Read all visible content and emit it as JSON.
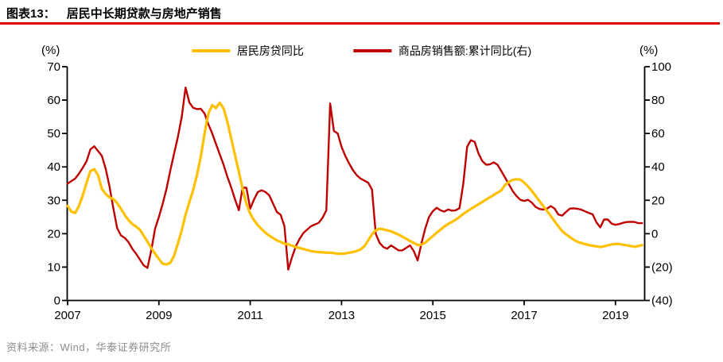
{
  "header": {
    "label": "图表13：",
    "title": "居民中长期贷款与房地产销售"
  },
  "source": "资料来源：Wind，华泰证券研究所",
  "colors": {
    "title_underline": "#e00000",
    "mortgage_line": "#FFC000",
    "sales_line": "#C00000",
    "axis": "#000000",
    "source_text": "#8c8c8c"
  },
  "legend": [
    {
      "label": "居民房贷同比",
      "color": "#FFC000"
    },
    {
      "label": "商品房销售额:累计同比(右)",
      "color": "#C00000"
    }
  ],
  "chart_data": {
    "type": "line",
    "title": "居民中长期贷款与房地产销售",
    "x_start": "2007-01",
    "x_interval": "monthly",
    "grid": false,
    "legend_position": "top-center",
    "x_tick_years": [
      2007,
      2009,
      2011,
      2013,
      2015,
      2017,
      2019
    ],
    "x_tick_labels": [
      "2007",
      "2009",
      "2011",
      "2013",
      "2015",
      "2017",
      "2019"
    ],
    "left_axis": {
      "unit": "(%)",
      "min": 0,
      "max": 70,
      "tick_values": [
        0,
        10,
        20,
        30,
        40,
        50,
        60,
        70
      ],
      "tick_labels": [
        "0",
        "10",
        "20",
        "30",
        "40",
        "50",
        "60",
        "70"
      ]
    },
    "right_axis": {
      "unit": "(%)",
      "min": -40,
      "max": 100,
      "tick_values": [
        -40,
        -20,
        0,
        20,
        40,
        60,
        80,
        100
      ],
      "tick_labels": [
        "(40)",
        "(20)",
        "0",
        "20",
        "40",
        "60",
        "80",
        "100"
      ]
    },
    "series": [
      {
        "name": "商品房销售额:累计同比(右)",
        "axis": "right",
        "color": "#C00000",
        "values": [
          30.0,
          31.5,
          33.0,
          36.0,
          39.5,
          43.5,
          50.5,
          52.3,
          49.5,
          46.5,
          39.0,
          28.5,
          15.5,
          3.5,
          -1.0,
          -2.5,
          -5.0,
          -9.0,
          -12.0,
          -15.5,
          -19.0,
          -20.5,
          -10.0,
          3.0,
          10.0,
          18.0,
          27.0,
          38.0,
          48.0,
          58.0,
          70.0,
          87.5,
          78.5,
          75.4,
          74.6,
          74.8,
          72.0,
          65.5,
          60.0,
          53.8,
          47.5,
          41.3,
          34.0,
          27.7,
          20.5,
          14.0,
          27.5,
          27.5,
          15.0,
          20.5,
          25.0,
          26.0,
          25.0,
          23.0,
          18.0,
          13.0,
          11.3,
          4.5,
          -21.5,
          -14.0,
          -7.5,
          -3.0,
          0.5,
          2.5,
          4.5,
          5.5,
          6.5,
          9.5,
          14.0,
          78.0,
          61.5,
          60.0,
          52.0,
          46.5,
          42.0,
          38.0,
          35.0,
          33.0,
          31.8,
          30.5,
          26.5,
          0.0,
          -5.5,
          -8.0,
          -9.0,
          -7.0,
          -8.5,
          -10.0,
          -10.0,
          -8.5,
          -7.0,
          -10.5,
          -16.0,
          -6.0,
          3.0,
          10.0,
          13.5,
          15.5,
          14.0,
          13.2,
          14.5,
          13.8,
          14.0,
          15.3,
          30.0,
          52.0,
          56.0,
          55.0,
          48.0,
          43.5,
          41.3,
          41.5,
          42.7,
          41.3,
          37.5,
          33.5,
          29.5,
          25.5,
          22.5,
          20.3,
          19.6,
          20.3,
          18.6,
          16.0,
          14.8,
          14.5,
          15.0,
          16.5,
          15.0,
          11.5,
          10.8,
          13.0,
          15.0,
          15.2,
          14.9,
          14.4,
          13.4,
          12.4,
          11.6,
          6.8,
          3.8,
          8.5,
          8.5,
          6.0,
          5.3,
          5.8,
          6.5,
          7.0,
          7.1,
          7.0,
          6.3,
          6.3
        ]
      },
      {
        "name": "居民房贷同比",
        "axis": "left",
        "color": "#FFC000",
        "values": [
          28.3,
          26.6,
          26.2,
          28.3,
          31.5,
          35.3,
          38.8,
          39.3,
          37.5,
          33.4,
          31.9,
          30.9,
          30.4,
          29.2,
          27.5,
          25.6,
          24.1,
          22.9,
          22.1,
          21.2,
          19.4,
          17.6,
          15.7,
          14.0,
          12.4,
          11.0,
          10.8,
          11.3,
          13.4,
          17.1,
          21.0,
          25.7,
          29.5,
          33.0,
          37.5,
          43.0,
          50.0,
          56.0,
          58.5,
          57.6,
          59.2,
          57.5,
          53.5,
          48.5,
          43.5,
          38.5,
          33.5,
          29.0,
          26.0,
          24.0,
          22.5,
          21.4,
          20.3,
          19.4,
          18.7,
          18.0,
          17.5,
          17.0,
          16.8,
          16.4,
          16.0,
          15.7,
          15.4,
          15.1,
          14.8,
          14.6,
          14.5,
          14.4,
          14.3,
          14.3,
          14.2,
          14.0,
          14.0,
          14.1,
          14.3,
          14.5,
          14.8,
          15.3,
          16.2,
          18.0,
          19.8,
          21.0,
          21.5,
          21.3,
          21.0,
          20.7,
          20.2,
          19.7,
          19.1,
          18.5,
          17.8,
          17.2,
          16.6,
          16.7,
          17.3,
          18.3,
          19.3,
          20.3,
          21.2,
          22.1,
          22.9,
          23.5,
          24.2,
          25.0,
          25.9,
          26.7,
          27.4,
          28.1,
          28.8,
          29.5,
          30.2,
          30.9,
          31.6,
          32.3,
          33.0,
          34.6,
          35.5,
          36.1,
          36.3,
          36.2,
          35.3,
          34.2,
          32.8,
          31.3,
          29.8,
          28.3,
          26.8,
          25.3,
          23.7,
          22.2,
          20.8,
          19.8,
          19.0,
          18.2,
          17.6,
          17.2,
          16.9,
          16.6,
          16.4,
          16.2,
          16.0,
          16.2,
          16.5,
          16.8,
          16.9,
          16.9,
          16.7,
          16.5,
          16.3,
          16.1,
          16.3,
          16.6
        ]
      }
    ]
  }
}
